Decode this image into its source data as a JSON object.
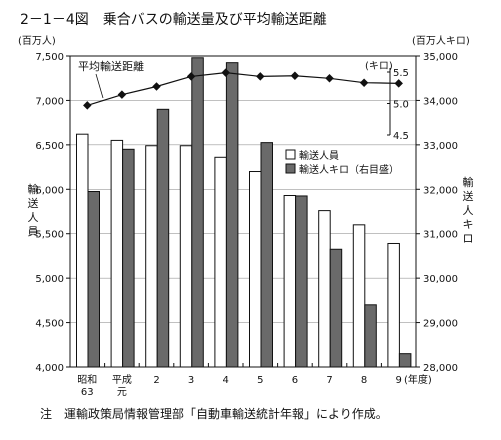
{
  "title": "2－1－4図　乗合バスの輸送量及び平均輸送距離",
  "note": "注　運輸政策局情報管理部「自動車輸送統計年報」により作成。",
  "chart_data": {
    "type": "bar",
    "categories": [
      "昭和63",
      "平成元",
      "2",
      "3",
      "4",
      "5",
      "6",
      "7",
      "8",
      "9"
    ],
    "category_lines": [
      [
        "昭和",
        "63"
      ],
      [
        "平成",
        "元"
      ],
      [
        "2"
      ],
      [
        "3"
      ],
      [
        "4"
      ],
      [
        "5"
      ],
      [
        "6"
      ],
      [
        "7"
      ],
      [
        "8"
      ],
      [
        "9"
      ]
    ],
    "x_unit": "(年度)",
    "left_axis": {
      "unit": "(百万人)",
      "label": "輸送人員",
      "label_chars": [
        "輸",
        "送",
        "人",
        "員"
      ],
      "ylim": [
        4000,
        7500
      ],
      "ticks": [
        4000,
        4500,
        5000,
        5500,
        6000,
        6500,
        7000,
        7500
      ],
      "tick_labels": [
        "4,000",
        "4,500",
        "5,000",
        "5,500",
        "6,000",
        "6,500",
        "7,000",
        "7,500"
      ]
    },
    "right_axis": {
      "unit": "(百万人キロ)",
      "label": "輸送人キロ",
      "label_chars": [
        "輸",
        "送",
        "人",
        "キ",
        "ロ"
      ],
      "ylim": [
        28000,
        35000
      ],
      "ticks": [
        28000,
        29000,
        30000,
        31000,
        32000,
        33000,
        34000,
        35000
      ],
      "tick_labels": [
        "28,000",
        "29,000",
        "30,000",
        "31,000",
        "32,000",
        "33,000",
        "34,000",
        "35,000"
      ]
    },
    "inner_axis": {
      "unit": "(キロ)",
      "ylim": [
        4.5,
        5.5
      ],
      "ticks": [
        4.5,
        5.0,
        5.5
      ],
      "tick_labels": [
        "4.5",
        "5.0",
        "5.5"
      ]
    },
    "series": [
      {
        "name": "輸送人員",
        "axis": "left",
        "kind": "bar",
        "color": "#ffffff",
        "values": [
          6620,
          6550,
          6490,
          6490,
          6360,
          6200,
          5930,
          5760,
          5600,
          5390
        ]
      },
      {
        "name": "輸送人キロ（右目盛）",
        "axis": "right",
        "kind": "bar",
        "color": "#6a6a6a",
        "values": [
          31950,
          32900,
          33800,
          34960,
          34850,
          33050,
          31850,
          30650,
          29400,
          28300
        ]
      },
      {
        "name": "平均輸送距離",
        "axis": "inner",
        "kind": "line",
        "color": "#111111",
        "values": [
          4.97,
          5.14,
          5.27,
          5.43,
          5.49,
          5.43,
          5.44,
          5.4,
          5.33,
          5.32
        ]
      }
    ],
    "line_label": "平均輸送距離",
    "legend_position": "inside-right",
    "grid": true
  }
}
